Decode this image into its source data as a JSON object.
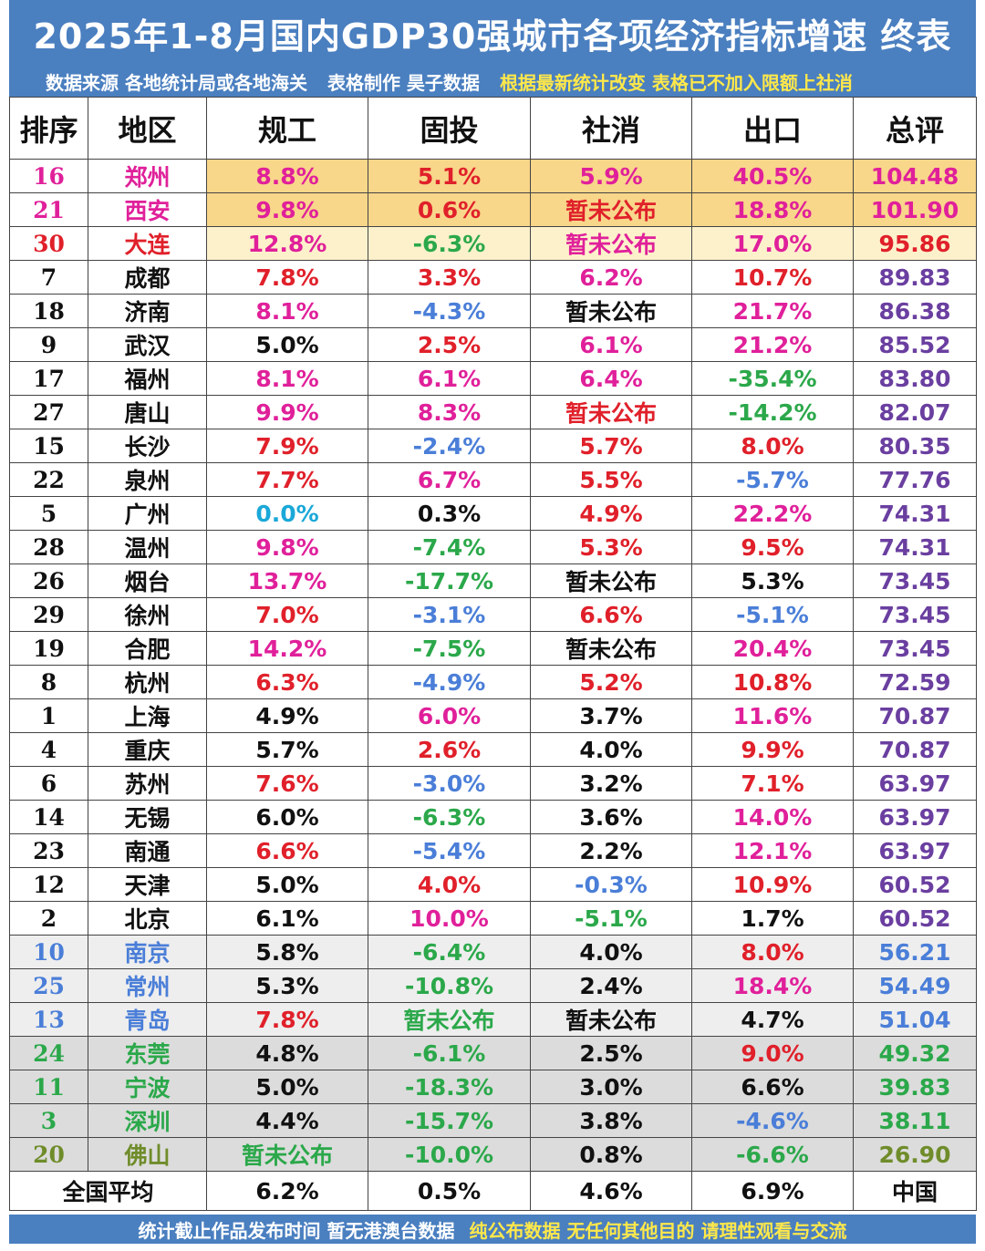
{
  "title": "2025年1-8月国内GDP30强城市各项经济指标增速 终表",
  "subtitle": {
    "source": "数据来源 各地统计局或各地海关",
    "maker": "表格制作 昊子数据",
    "note": "根据最新统计改变 表格已不加入限额上社消"
  },
  "headers": [
    "排序",
    "地区",
    "规工",
    "固投",
    "社消",
    "出口",
    "总评"
  ],
  "colors": {
    "red": "#e0202a",
    "magenta": "#e0209a",
    "blue": "#4a7ed8",
    "green": "#2ba84a",
    "black": "#111111",
    "cyan": "#1aa8d8",
    "purple": "#6a3fa0",
    "olive": "#6f8c2a",
    "highlight_gold": "#f8d68a",
    "highlight_pale": "#fdf1cc",
    "row_gray": "#eeeeee",
    "row_dark_gray": "#dcdcdc"
  },
  "rows": [
    {
      "rank": "16",
      "city": "郑州",
      "ind": "8.8%",
      "inv": "5.1%",
      "ret": "5.9%",
      "exp": "40.5%",
      "score": "104.48",
      "c": [
        "magenta",
        "magenta",
        "magenta",
        "red",
        "magenta",
        "magenta",
        "magenta"
      ],
      "bg": "gold"
    },
    {
      "rank": "21",
      "city": "西安",
      "ind": "9.8%",
      "inv": "0.6%",
      "ret": "暂未公布",
      "exp": "18.8%",
      "score": "101.90",
      "c": [
        "magenta",
        "magenta",
        "magenta",
        "red",
        "red",
        "magenta",
        "magenta"
      ],
      "bg": "gold"
    },
    {
      "rank": "30",
      "city": "大连",
      "ind": "12.8%",
      "inv": "-6.3%",
      "ret": "暂未公布",
      "exp": "17.0%",
      "score": "95.86",
      "c": [
        "red",
        "red",
        "magenta",
        "green",
        "magenta",
        "magenta",
        "red"
      ],
      "bg": "pale"
    },
    {
      "rank": "7",
      "city": "成都",
      "ind": "7.8%",
      "inv": "3.3%",
      "ret": "6.2%",
      "exp": "10.7%",
      "score": "89.83",
      "c": [
        "black",
        "black",
        "red",
        "red",
        "magenta",
        "red",
        "purple"
      ],
      "bg": ""
    },
    {
      "rank": "18",
      "city": "济南",
      "ind": "8.1%",
      "inv": "-4.3%",
      "ret": "暂未公布",
      "exp": "21.7%",
      "score": "86.38",
      "c": [
        "black",
        "black",
        "magenta",
        "blue",
        "black",
        "magenta",
        "purple"
      ],
      "bg": ""
    },
    {
      "rank": "9",
      "city": "武汉",
      "ind": "5.0%",
      "inv": "2.5%",
      "ret": "6.1%",
      "exp": "21.2%",
      "score": "85.52",
      "c": [
        "black",
        "black",
        "black",
        "red",
        "magenta",
        "magenta",
        "purple"
      ],
      "bg": ""
    },
    {
      "rank": "17",
      "city": "福州",
      "ind": "8.1%",
      "inv": "6.1%",
      "ret": "6.4%",
      "exp": "-35.4%",
      "score": "83.80",
      "c": [
        "black",
        "black",
        "magenta",
        "magenta",
        "magenta",
        "green",
        "purple"
      ],
      "bg": ""
    },
    {
      "rank": "27",
      "city": "唐山",
      "ind": "9.9%",
      "inv": "8.3%",
      "ret": "暂未公布",
      "exp": "-14.2%",
      "score": "82.07",
      "c": [
        "black",
        "black",
        "magenta",
        "magenta",
        "red",
        "green",
        "purple"
      ],
      "bg": ""
    },
    {
      "rank": "15",
      "city": "长沙",
      "ind": "7.9%",
      "inv": "-2.4%",
      "ret": "5.7%",
      "exp": "8.0%",
      "score": "80.35",
      "c": [
        "black",
        "black",
        "red",
        "blue",
        "red",
        "red",
        "purple"
      ],
      "bg": ""
    },
    {
      "rank": "22",
      "city": "泉州",
      "ind": "7.7%",
      "inv": "6.7%",
      "ret": "5.5%",
      "exp": "-5.7%",
      "score": "77.76",
      "c": [
        "black",
        "black",
        "red",
        "magenta",
        "red",
        "blue",
        "purple"
      ],
      "bg": ""
    },
    {
      "rank": "5",
      "city": "广州",
      "ind": "0.0%",
      "inv": "0.3%",
      "ret": "4.9%",
      "exp": "22.2%",
      "score": "74.31",
      "c": [
        "black",
        "black",
        "cyan",
        "black",
        "red",
        "magenta",
        "purple"
      ],
      "bg": ""
    },
    {
      "rank": "28",
      "city": "温州",
      "ind": "9.8%",
      "inv": "-7.4%",
      "ret": "5.3%",
      "exp": "9.5%",
      "score": "74.31",
      "c": [
        "black",
        "black",
        "magenta",
        "green",
        "red",
        "red",
        "purple"
      ],
      "bg": ""
    },
    {
      "rank": "26",
      "city": "烟台",
      "ind": "13.7%",
      "inv": "-17.7%",
      "ret": "暂未公布",
      "exp": "5.3%",
      "score": "73.45",
      "c": [
        "black",
        "black",
        "magenta",
        "green",
        "black",
        "black",
        "purple"
      ],
      "bg": ""
    },
    {
      "rank": "29",
      "city": "徐州",
      "ind": "7.0%",
      "inv": "-3.1%",
      "ret": "6.6%",
      "exp": "-5.1%",
      "score": "73.45",
      "c": [
        "black",
        "black",
        "red",
        "blue",
        "red",
        "blue",
        "purple"
      ],
      "bg": ""
    },
    {
      "rank": "19",
      "city": "合肥",
      "ind": "14.2%",
      "inv": "-7.5%",
      "ret": "暂未公布",
      "exp": "20.4%",
      "score": "73.45",
      "c": [
        "black",
        "black",
        "magenta",
        "green",
        "black",
        "magenta",
        "purple"
      ],
      "bg": ""
    },
    {
      "rank": "8",
      "city": "杭州",
      "ind": "6.3%",
      "inv": "-4.9%",
      "ret": "5.2%",
      "exp": "10.8%",
      "score": "72.59",
      "c": [
        "black",
        "black",
        "red",
        "blue",
        "red",
        "red",
        "purple"
      ],
      "bg": ""
    },
    {
      "rank": "1",
      "city": "上海",
      "ind": "4.9%",
      "inv": "6.0%",
      "ret": "3.7%",
      "exp": "11.6%",
      "score": "70.87",
      "c": [
        "black",
        "black",
        "black",
        "magenta",
        "black",
        "magenta",
        "purple"
      ],
      "bg": ""
    },
    {
      "rank": "4",
      "city": "重庆",
      "ind": "5.7%",
      "inv": "2.6%",
      "ret": "4.0%",
      "exp": "9.9%",
      "score": "70.87",
      "c": [
        "black",
        "black",
        "black",
        "red",
        "black",
        "red",
        "purple"
      ],
      "bg": ""
    },
    {
      "rank": "6",
      "city": "苏州",
      "ind": "7.6%",
      "inv": "-3.0%",
      "ret": "3.2%",
      "exp": "7.1%",
      "score": "63.97",
      "c": [
        "black",
        "black",
        "red",
        "blue",
        "black",
        "red",
        "purple"
      ],
      "bg": ""
    },
    {
      "rank": "14",
      "city": "无锡",
      "ind": "6.0%",
      "inv": "-6.3%",
      "ret": "3.6%",
      "exp": "14.0%",
      "score": "63.97",
      "c": [
        "black",
        "black",
        "black",
        "green",
        "black",
        "magenta",
        "purple"
      ],
      "bg": ""
    },
    {
      "rank": "23",
      "city": "南通",
      "ind": "6.6%",
      "inv": "-5.4%",
      "ret": "2.2%",
      "exp": "12.1%",
      "score": "63.97",
      "c": [
        "black",
        "black",
        "red",
        "blue",
        "black",
        "magenta",
        "purple"
      ],
      "bg": ""
    },
    {
      "rank": "12",
      "city": "天津",
      "ind": "5.0%",
      "inv": "4.0%",
      "ret": "-0.3%",
      "exp": "10.9%",
      "score": "60.52",
      "c": [
        "black",
        "black",
        "black",
        "red",
        "blue",
        "red",
        "purple"
      ],
      "bg": ""
    },
    {
      "rank": "2",
      "city": "北京",
      "ind": "6.1%",
      "inv": "10.0%",
      "ret": "-5.1%",
      "exp": "1.7%",
      "score": "60.52",
      "c": [
        "black",
        "black",
        "black",
        "magenta",
        "green",
        "black",
        "purple"
      ],
      "bg": ""
    },
    {
      "rank": "10",
      "city": "南京",
      "ind": "5.8%",
      "inv": "-6.4%",
      "ret": "4.0%",
      "exp": "8.0%",
      "score": "56.21",
      "c": [
        "blue",
        "blue",
        "black",
        "green",
        "black",
        "red",
        "blue"
      ],
      "bg": "gray"
    },
    {
      "rank": "25",
      "city": "常州",
      "ind": "5.3%",
      "inv": "-10.8%",
      "ret": "2.4%",
      "exp": "18.4%",
      "score": "54.49",
      "c": [
        "blue",
        "blue",
        "black",
        "green",
        "black",
        "magenta",
        "blue"
      ],
      "bg": "gray"
    },
    {
      "rank": "13",
      "city": "青岛",
      "ind": "7.8%",
      "inv": "暂未公布",
      "ret": "暂未公布",
      "exp": "4.7%",
      "score": "51.04",
      "c": [
        "blue",
        "blue",
        "red",
        "green",
        "black",
        "black",
        "blue"
      ],
      "bg": "gray"
    },
    {
      "rank": "24",
      "city": "东莞",
      "ind": "4.8%",
      "inv": "-6.1%",
      "ret": "2.5%",
      "exp": "9.0%",
      "score": "49.32",
      "c": [
        "green",
        "green",
        "black",
        "green",
        "black",
        "red",
        "green"
      ],
      "bg": "dark"
    },
    {
      "rank": "11",
      "city": "宁波",
      "ind": "5.0%",
      "inv": "-18.3%",
      "ret": "3.0%",
      "exp": "6.6%",
      "score": "39.83",
      "c": [
        "green",
        "green",
        "black",
        "green",
        "black",
        "black",
        "green"
      ],
      "bg": "dark"
    },
    {
      "rank": "3",
      "city": "深圳",
      "ind": "4.4%",
      "inv": "-15.7%",
      "ret": "3.8%",
      "exp": "-4.6%",
      "score": "38.11",
      "c": [
        "green",
        "green",
        "black",
        "green",
        "black",
        "blue",
        "green"
      ],
      "bg": "dark"
    },
    {
      "rank": "20",
      "city": "佛山",
      "ind": "暂未公布",
      "inv": "-10.0%",
      "ret": "0.8%",
      "exp": "-6.6%",
      "score": "26.90",
      "c": [
        "olive",
        "olive",
        "green",
        "green",
        "black",
        "green",
        "olive"
      ],
      "bg": "dark"
    }
  ],
  "average": {
    "label": "全国平均",
    "ind": "6.2%",
    "inv": "0.5%",
    "ret": "4.6%",
    "exp": "6.9%",
    "score": "中国"
  },
  "footer": {
    "left": "统计截止作品发布时间  暂无港澳台数据",
    "right": "纯公布数据 无任何其他目的 请理性观看与交流"
  }
}
